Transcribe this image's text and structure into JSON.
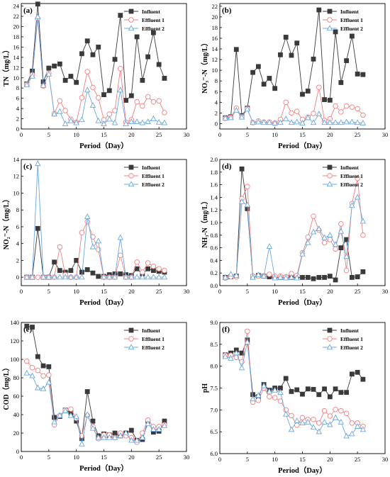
{
  "colors": {
    "influent": "#3a3a3a",
    "effluent1": "#f08080",
    "effluent2": "#6aa8e0",
    "axis": "#000000"
  },
  "chart_data": [
    {
      "panel": "(a)",
      "type": "line",
      "xlabel": "Period（Day）",
      "ylabel": "TN（mg/L）",
      "xlim": [
        0,
        30
      ],
      "ylim": [
        0,
        24.5
      ],
      "xticks": [
        0,
        5,
        10,
        15,
        20,
        25,
        30
      ],
      "yticks": [
        0,
        2,
        4,
        6,
        8,
        10,
        12,
        14,
        16,
        18,
        20,
        22,
        24
      ],
      "legend": {
        "position": "top-right",
        "labels": [
          "Influent",
          "Effluent 1",
          "Effluent 2"
        ]
      },
      "x": [
        1,
        2,
        3,
        4,
        5,
        6,
        7,
        8,
        9,
        10,
        11,
        12,
        13,
        14,
        15,
        16,
        17,
        18,
        19,
        20,
        21,
        22,
        23,
        24,
        25,
        26
      ],
      "series": [
        {
          "name": "Influent",
          "marker": "square",
          "values": [
            8.8,
            11.3,
            24.4,
            9.2,
            11.9,
            12.3,
            12.7,
            9.5,
            10.3,
            9.1,
            14.7,
            17.2,
            14.5,
            16.0,
            6.7,
            7.5,
            13.6,
            22.2,
            5.6,
            6.5,
            18.0,
            9.5,
            14.1,
            18.8,
            12.6,
            9.9
          ]
        },
        {
          "name": "Effluent 1",
          "marker": "circle",
          "values": [
            8.7,
            10.6,
            21.6,
            8.4,
            10.9,
            3.0,
            5.5,
            3.6,
            1.9,
            1.3,
            6.1,
            11.2,
            8.1,
            6.1,
            1.8,
            2.9,
            3.6,
            11.8,
            1.3,
            1.8,
            5.3,
            4.5,
            6.3,
            5.3,
            5.5,
            3.2
          ]
        },
        {
          "name": "Effluent 2",
          "marker": "triangle",
          "values": [
            8.6,
            10.3,
            21.9,
            8.5,
            10.7,
            2.9,
            3.4,
            1.0,
            1.6,
            1.2,
            1.8,
            7.6,
            4.6,
            1.6,
            1.0,
            1.9,
            1.2,
            7.6,
            1.0,
            1.4,
            1.4,
            1.2,
            1.4,
            2.0,
            1.3,
            1.2
          ]
        }
      ]
    },
    {
      "panel": "(b)",
      "type": "line",
      "xlabel": "Period（Day）",
      "ylabel": "NO₃⁻-N（mg/L）",
      "xlim": [
        0,
        30
      ],
      "ylim": [
        -1,
        22.5
      ],
      "xticks": [
        0,
        5,
        10,
        15,
        20,
        25,
        30
      ],
      "yticks": [
        0,
        2,
        4,
        6,
        8,
        10,
        12,
        14,
        16,
        18,
        20,
        22
      ],
      "legend": {
        "position": "top-right",
        "labels": [
          "Influent",
          "Effluent 1",
          "Effluent 2"
        ]
      },
      "x": [
        1,
        2,
        3,
        4,
        5,
        6,
        7,
        8,
        9,
        10,
        11,
        12,
        13,
        14,
        15,
        16,
        17,
        18,
        19,
        20,
        21,
        22,
        23,
        24,
        25,
        26
      ],
      "series": [
        {
          "name": "Influent",
          "marker": "square",
          "values": [
            1.1,
            1.3,
            13.9,
            1.5,
            2.9,
            9.6,
            10.7,
            7.4,
            8.5,
            6.6,
            12.9,
            16.2,
            12.8,
            15.1,
            5.5,
            6.1,
            12.1,
            21.3,
            4.5,
            4.4,
            17.2,
            7.7,
            11.8,
            16.4,
            9.3,
            9.2
          ]
        },
        {
          "name": "Effluent 1",
          "marker": "circle",
          "values": [
            1.0,
            1.2,
            2.9,
            1.3,
            2.8,
            0.2,
            0.5,
            0.3,
            0.3,
            0.1,
            0.8,
            4.0,
            2.0,
            2.3,
            0.8,
            1.2,
            1.9,
            6.8,
            0.6,
            0.9,
            3.3,
            2.2,
            3.3,
            3.1,
            2.8,
            1.6
          ]
        },
        {
          "name": "Effluent 2",
          "marker": "triangle",
          "values": [
            1.0,
            1.1,
            2.5,
            1.2,
            2.7,
            0.2,
            0.3,
            0.2,
            0.2,
            0.1,
            0.2,
            0.9,
            0.2,
            0.3,
            0.1,
            1.1,
            0.2,
            1.8,
            0.2,
            0.2,
            0.2,
            0.2,
            0.3,
            0.3,
            0.2,
            0.1
          ]
        }
      ]
    },
    {
      "panel": "(c)",
      "type": "line",
      "xlabel": "Period（Day）",
      "ylabel": "NO₂⁻-N（mg/L）",
      "xlim": [
        0,
        30
      ],
      "ylim": [
        -1,
        14
      ],
      "xticks": [
        0,
        5,
        10,
        15,
        20,
        25,
        30
      ],
      "yticks": [
        0,
        2,
        4,
        6,
        8,
        10,
        12,
        14
      ],
      "legend": {
        "position": "top-right",
        "labels": [
          "Influent",
          "Effluent 1",
          "Effluent 2"
        ]
      },
      "x": [
        1,
        2,
        3,
        4,
        5,
        6,
        7,
        8,
        9,
        10,
        11,
        12,
        13,
        14,
        15,
        16,
        17,
        18,
        19,
        20,
        21,
        22,
        23,
        24,
        25,
        26
      ],
      "series": [
        {
          "name": "Influent",
          "marker": "square",
          "values": [
            0,
            0,
            5.8,
            0,
            0,
            1.8,
            0.8,
            0.6,
            0.8,
            2.0,
            0.6,
            0.9,
            0.5,
            0.1,
            0.1,
            0.3,
            0.4,
            0.4,
            0.3,
            0.2,
            1.0,
            0.4,
            1.0,
            0.8,
            0.7,
            0.6
          ]
        },
        {
          "name": "Effluent 1",
          "marker": "circle",
          "values": [
            0,
            0,
            0,
            0,
            0,
            0,
            3.6,
            0.3,
            0,
            0,
            5.3,
            6.6,
            4.8,
            3.3,
            0,
            0,
            0,
            2.6,
            0,
            0,
            1.8,
            0.6,
            1.7,
            1.3,
            1.0,
            0.8
          ]
        },
        {
          "name": "Effluent 2",
          "marker": "triangle",
          "values": [
            0,
            0,
            13.5,
            0,
            0,
            0,
            0,
            0,
            0,
            0,
            0,
            7.2,
            3.6,
            4.3,
            0,
            0,
            0,
            4.7,
            0,
            0,
            0,
            0,
            0,
            0,
            0,
            0
          ]
        }
      ]
    },
    {
      "panel": "(d)",
      "type": "line",
      "xlabel": "Period（Day）",
      "ylabel": "NH₃-N（mg/L）",
      "xlim": [
        0,
        30
      ],
      "ylim": [
        0,
        2.0
      ],
      "xticks": [
        0,
        5,
        10,
        15,
        20,
        25,
        30
      ],
      "yticks": [
        0.0,
        0.2,
        0.4,
        0.6,
        0.8,
        1.0,
        1.2,
        1.4,
        1.6,
        1.8,
        2.0
      ],
      "legend": {
        "position": "top-right",
        "labels": [
          "Influent",
          "Effluent 1",
          "Effluent 2"
        ]
      },
      "x": [
        1,
        2,
        3,
        4,
        5,
        6,
        7,
        8,
        9,
        10,
        11,
        12,
        13,
        14,
        15,
        16,
        17,
        18,
        19,
        20,
        21,
        22,
        23,
        24,
        25,
        26
      ],
      "series": [
        {
          "name": "Influent",
          "marker": "square",
          "values": [
            0.13,
            0.14,
            0.15,
            1.85,
            1.22,
            0.14,
            0.16,
            0.15,
            0.14,
            0.13,
            0.13,
            0.13,
            0.13,
            0.13,
            0.13,
            0.13,
            0.11,
            0.13,
            0.13,
            0.15,
            0.09,
            0.6,
            0.73,
            0.13,
            0.14,
            0.22
          ]
        },
        {
          "name": "Effluent 1",
          "marker": "circle",
          "values": [
            0.12,
            0.14,
            0.14,
            1.38,
            1.57,
            0.15,
            0.15,
            0.15,
            0.18,
            0.15,
            0.15,
            0.14,
            0.19,
            0.16,
            0.52,
            0.77,
            1.1,
            0.88,
            0.68,
            0.73,
            0.58,
            0.98,
            0.24,
            1.3,
            1.7,
            0.8
          ]
        },
        {
          "name": "Effluent 2",
          "marker": "triangle",
          "values": [
            0.13,
            0.18,
            0.16,
            1.33,
            1.28,
            0.13,
            0.17,
            0.15,
            0.62,
            0.12,
            0.13,
            0.12,
            0.13,
            0.12,
            0.5,
            0.68,
            0.85,
            0.9,
            0.76,
            0.8,
            0.65,
            0.86,
            0.46,
            1.27,
            1.4,
            1.02
          ]
        }
      ]
    },
    {
      "panel": "(e)",
      "type": "line",
      "xlabel": "Period（Day）",
      "ylabel": "COD（mg/L）",
      "xlim": [
        0,
        30
      ],
      "ylim": [
        0,
        140
      ],
      "xticks": [
        0,
        5,
        10,
        15,
        20,
        25,
        30
      ],
      "yticks": [
        0,
        20,
        40,
        60,
        80,
        100,
        120,
        140
      ],
      "legend": {
        "position": "top-right",
        "labels": [
          "Influent",
          "Effluent 1",
          "Effluent 2"
        ]
      },
      "x": [
        1,
        2,
        3,
        4,
        5,
        6,
        7,
        8,
        9,
        10,
        11,
        12,
        13,
        14,
        15,
        16,
        17,
        18,
        19,
        20,
        21,
        22,
        23,
        24,
        25,
        26
      ],
      "series": [
        {
          "name": "Influent",
          "marker": "square",
          "values": [
            136,
            135,
            103,
            93,
            92,
            37,
            38,
            45,
            42,
            33,
            14,
            65,
            33,
            17,
            19,
            18,
            20,
            17,
            20,
            23,
            12,
            13,
            33,
            21,
            22,
            33
          ]
        },
        {
          "name": "Effluent 1",
          "marker": "circle",
          "values": [
            98,
            91,
            88,
            82,
            83,
            29,
            39,
            45,
            46,
            36,
            17,
            39,
            27,
            14,
            18,
            18,
            15,
            20,
            17,
            15,
            10,
            20,
            34,
            27,
            27,
            29
          ]
        },
        {
          "name": "Effluent 2",
          "marker": "triangle",
          "values": [
            85,
            82,
            69,
            68,
            75,
            32,
            39,
            44,
            39,
            38,
            8,
            40,
            25,
            15,
            15,
            15,
            15,
            17,
            20,
            12,
            12,
            15,
            30,
            24,
            24,
            28
          ]
        }
      ]
    },
    {
      "panel": "(f)",
      "type": "line",
      "xlabel": "Period（Day）",
      "ylabel": "pH",
      "xlim": [
        0,
        30
      ],
      "ylim": [
        6.0,
        9.0
      ],
      "xticks": [
        0,
        5,
        10,
        15,
        20,
        25,
        30
      ],
      "yticks": [
        6.0,
        6.5,
        7.0,
        7.5,
        8.0,
        8.5,
        9.0
      ],
      "legend": {
        "position": "top-right",
        "labels": [
          "Influent",
          "Effluent 1",
          "Effluent 2"
        ]
      },
      "x": [
        1,
        2,
        3,
        4,
        5,
        6,
        7,
        8,
        9,
        10,
        11,
        12,
        13,
        14,
        15,
        16,
        17,
        18,
        19,
        20,
        21,
        22,
        23,
        24,
        25,
        26
      ],
      "series": [
        {
          "name": "Influent",
          "marker": "square",
          "values": [
            8.26,
            8.3,
            8.37,
            8.3,
            8.6,
            7.35,
            7.3,
            7.58,
            7.45,
            7.5,
            7.5,
            7.72,
            7.42,
            7.46,
            7.36,
            7.48,
            7.47,
            7.35,
            7.48,
            7.3,
            7.48,
            7.4,
            7.4,
            7.82,
            7.86,
            7.7
          ]
        },
        {
          "name": "Effluent 1",
          "marker": "circle",
          "values": [
            8.25,
            8.25,
            8.2,
            8.1,
            8.8,
            7.18,
            7.22,
            7.5,
            7.3,
            7.28,
            7.2,
            7.0,
            6.87,
            6.65,
            6.82,
            6.78,
            6.78,
            6.7,
            6.98,
            6.86,
            7.01,
            6.98,
            6.92,
            6.7,
            6.7,
            6.62
          ]
        },
        {
          "name": "Effluent 2",
          "marker": "triangle",
          "values": [
            8.22,
            8.18,
            8.3,
            7.96,
            8.55,
            7.25,
            7.33,
            7.55,
            7.42,
            7.45,
            7.4,
            6.9,
            6.55,
            6.75,
            6.7,
            6.72,
            6.6,
            6.5,
            6.72,
            6.66,
            6.82,
            6.72,
            6.4,
            6.45,
            6.62,
            6.55
          ]
        }
      ]
    }
  ]
}
